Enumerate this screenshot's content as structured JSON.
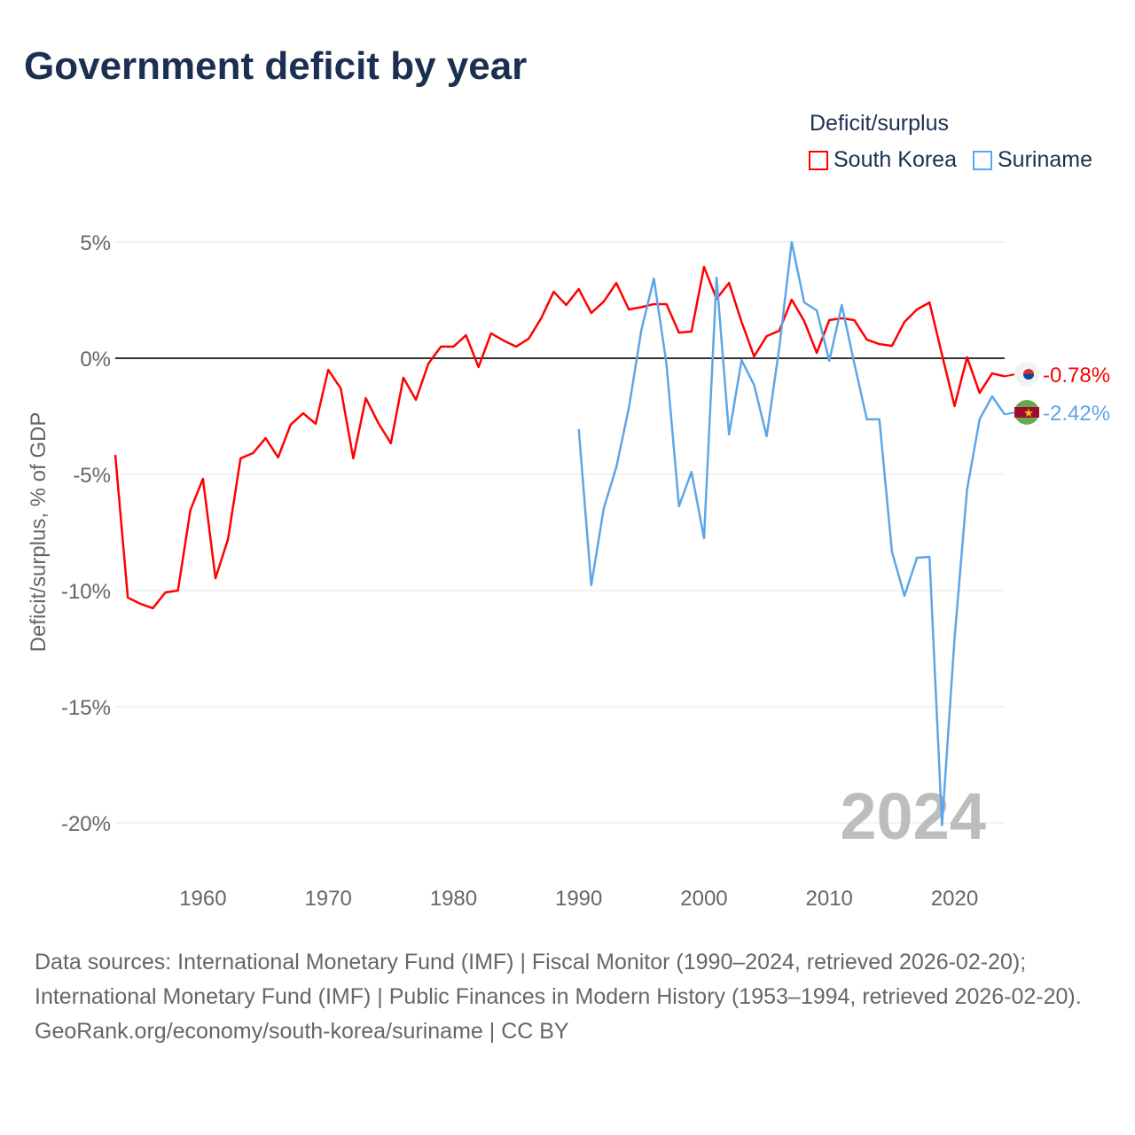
{
  "title": "Government deficit by year",
  "legend": {
    "title": "Deficit/surplus",
    "items": [
      {
        "label": "South Korea",
        "color": "#ff0000"
      },
      {
        "label": "Suriname",
        "color": "#5ea5e8"
      }
    ]
  },
  "chart_data": {
    "type": "line",
    "title": "Government deficit by year",
    "xlabel": "",
    "ylabel": "Deficit/surplus, % of GDP",
    "xlim": [
      1953,
      2024
    ],
    "ylim": [
      -20,
      5
    ],
    "xticks": [
      1960,
      1970,
      1980,
      1990,
      2000,
      2010,
      2020
    ],
    "xtick_labels": [
      "1960",
      "1970",
      "1980",
      "1990",
      "2000",
      "2010",
      "2020"
    ],
    "yticks": [
      5,
      0,
      -5,
      -10,
      -15,
      -20
    ],
    "ytick_labels": [
      "5%",
      "0%",
      "-5%",
      "-10%",
      "-15%",
      "-20%"
    ],
    "year_watermark": "2024",
    "series": [
      {
        "name": "South Korea",
        "color": "#ff0000",
        "end_label": "-0.78%",
        "start_year": 1953,
        "values": [
          -4.16,
          -10.3,
          -10.57,
          -10.76,
          -10.08,
          -10.0,
          -6.53,
          -5.19,
          -9.47,
          -7.79,
          -4.31,
          -4.08,
          -3.44,
          -4.27,
          -2.86,
          -2.37,
          -2.82,
          -0.5,
          -1.3,
          -4.31,
          -1.72,
          -2.79,
          -3.66,
          -0.84,
          -1.79,
          -0.23,
          0.5,
          0.5,
          0.99,
          -0.38,
          1.07,
          0.76,
          0.5,
          0.84,
          1.72,
          2.86,
          2.29,
          2.98,
          1.95,
          2.44,
          3.24,
          2.1,
          2.2,
          2.33,
          2.33,
          1.1,
          1.15,
          3.93,
          2.56,
          3.24,
          1.56,
          0.08,
          0.95,
          1.18,
          2.52,
          1.6,
          0.23,
          1.64,
          1.72,
          1.64,
          0.8,
          0.61,
          0.53,
          1.56,
          2.1,
          2.4,
          0.15,
          -2.06,
          0.04,
          -1.49,
          -0.65,
          -0.78
        ]
      },
      {
        "name": "Suriname",
        "color": "#5ea5e8",
        "end_label": "-2.42%",
        "start_year": 1990,
        "values": [
          -3.05,
          -9.77,
          -6.45,
          -4.69,
          -2.14,
          1.22,
          3.43,
          -0.23,
          -6.37,
          -4.89,
          -7.75,
          3.47,
          -3.28,
          -0.08,
          -1.15,
          -3.36,
          0.42,
          5.0,
          2.4,
          2.06,
          -0.11,
          2.29,
          -0.23,
          -2.63,
          -2.63,
          -8.32,
          -10.23,
          -8.59,
          -8.55,
          -20.1,
          -12.06,
          -5.65,
          -2.63,
          -1.64,
          -2.42
        ]
      }
    ]
  },
  "source": {
    "line1": "Data sources: International Monetary Fund (IMF) | Fiscal Monitor (1990–2024, retrieved 2026-02-20); International Monetary Fund (IMF) | Public Finances in Modern History (1953–1994, retrieved 2026-02-20).",
    "line2": "GeoRank.org/economy/south-korea/suriname | CC BY"
  }
}
